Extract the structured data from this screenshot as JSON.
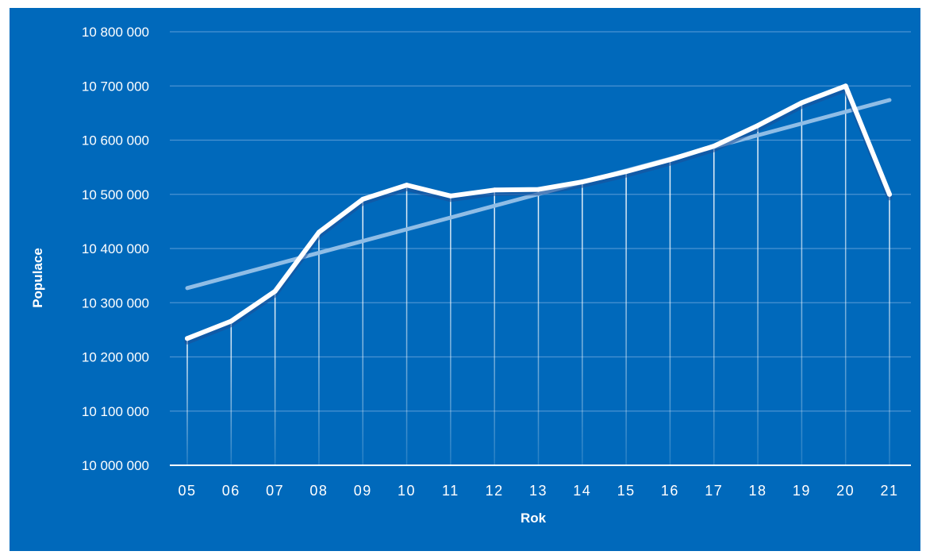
{
  "colors": {
    "background": "#0069bb",
    "line": "#ffffff",
    "trend": "#8fbde6",
    "grid": "#4a93d2",
    "text": "#ffffff"
  },
  "chart_data": {
    "type": "line",
    "xlabel": "Rok",
    "ylabel": "Populace",
    "categories": [
      "05",
      "06",
      "07",
      "08",
      "09",
      "10",
      "11",
      "12",
      "13",
      "14",
      "15",
      "16",
      "17",
      "18",
      "19",
      "20",
      "21"
    ],
    "series": [
      {
        "values": [
          10234000,
          10266000,
          10321000,
          10430000,
          10491000,
          10517000,
          10497000,
          10508000,
          10509000,
          10523000,
          10542000,
          10564000,
          10589000,
          10627000,
          10669000,
          10700000,
          10500000
        ]
      }
    ],
    "trendline": {
      "start": 10327000,
      "end": 10674000
    },
    "ylim": [
      10000000,
      10800000
    ],
    "yticks": [
      10000000,
      10100000,
      10200000,
      10300000,
      10400000,
      10500000,
      10600000,
      10700000,
      10800000
    ],
    "ytick_labels": [
      "10 000 000",
      "10 100 000",
      "10 200 000",
      "10 300 000",
      "10 400 000",
      "10 500 000",
      "10 600 000",
      "10 700 000",
      "10 800 000"
    ],
    "grid": true,
    "drop_lines": true
  }
}
